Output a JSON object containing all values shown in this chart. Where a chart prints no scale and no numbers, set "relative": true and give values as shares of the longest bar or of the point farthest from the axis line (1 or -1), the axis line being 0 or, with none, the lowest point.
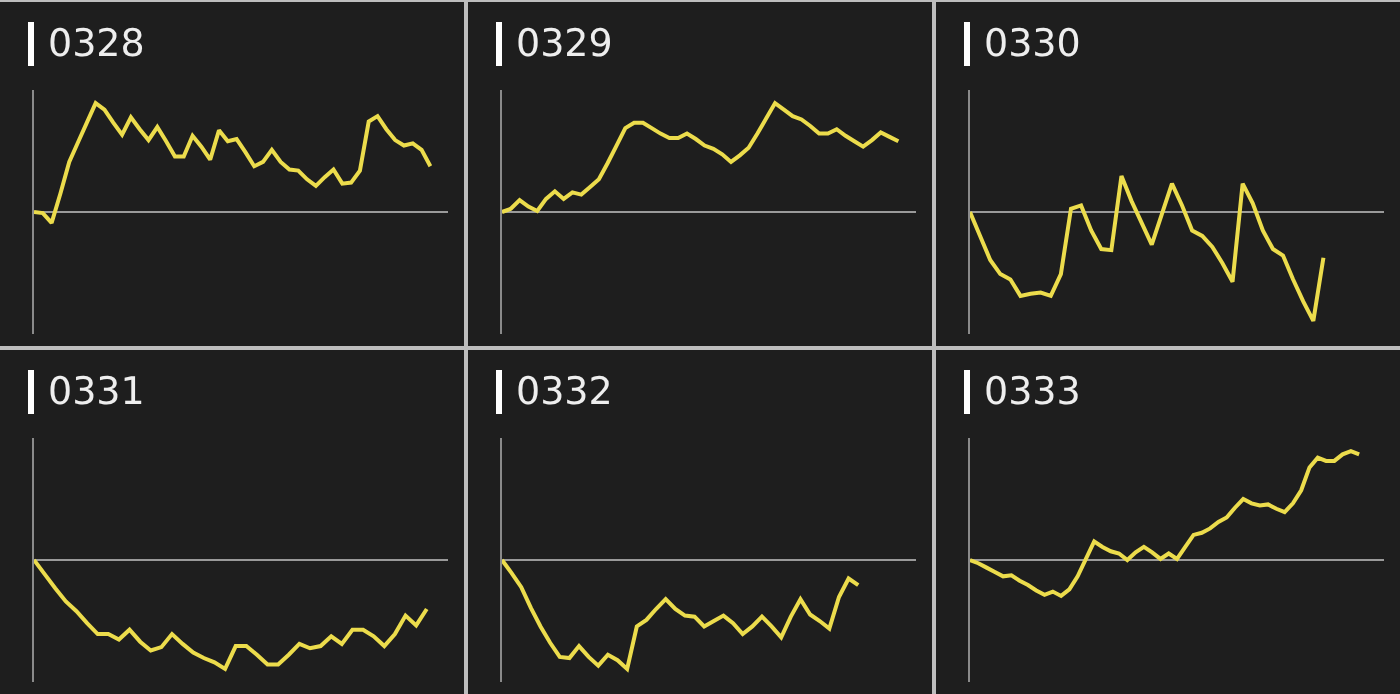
{
  "chart_data": [
    {
      "type": "line",
      "title": "0328",
      "relative": true,
      "categories": [
        null,
        null,
        null,
        null,
        null,
        null,
        null,
        null,
        null,
        null,
        null,
        null,
        null,
        null,
        null,
        null,
        null,
        null,
        null,
        null,
        null,
        null,
        null,
        null,
        null,
        null,
        null,
        null,
        null,
        null,
        null,
        null,
        null,
        null,
        null,
        null,
        null,
        null,
        null,
        null,
        null,
        null,
        null,
        null,
        null,
        null,
        null,
        null
      ],
      "series": [
        {
          "color": "#ecdc4c",
          "values": [
            0,
            -0.01,
            -0.1,
            0.17,
            0.46,
            0.64,
            0.82,
            1,
            0.94,
            0.82,
            0.71,
            0.87,
            0.76,
            0.66,
            0.78,
            0.65,
            0.51,
            0.51,
            0.7,
            0.6,
            0.48,
            0.75,
            0.65,
            0.67,
            0.55,
            0.42,
            0.46,
            0.57,
            0.46,
            0.39,
            0.38,
            0.3,
            0.24,
            0.32,
            0.39,
            0.26,
            0.27,
            0.38,
            0.83,
            0.88,
            0.76,
            0.66,
            0.61,
            0.63,
            0.57,
            0.42,
            null,
            null
          ]
        }
      ]
    },
    {
      "type": "line",
      "title": "0329",
      "relative": true,
      "categories": [
        null,
        null,
        null,
        null,
        null,
        null,
        null,
        null,
        null,
        null,
        null,
        null,
        null,
        null,
        null,
        null,
        null,
        null,
        null,
        null,
        null,
        null,
        null,
        null,
        null,
        null,
        null,
        null,
        null,
        null,
        null,
        null,
        null,
        null,
        null,
        null,
        null,
        null,
        null,
        null,
        null,
        null,
        null,
        null,
        null,
        null,
        null,
        null
      ],
      "series": [
        {
          "color": "#ecdc4c",
          "values": [
            0,
            0.03,
            0.11,
            0.05,
            0.01,
            0.12,
            0.19,
            0.12,
            0.18,
            0.16,
            0.23,
            0.3,
            0.45,
            0.61,
            0.77,
            0.82,
            0.82,
            0.77,
            0.72,
            0.68,
            0.68,
            0.72,
            0.67,
            0.61,
            0.58,
            0.53,
            0.46,
            0.52,
            0.59,
            0.72,
            0.86,
            1,
            0.94,
            0.88,
            0.85,
            0.79,
            0.72,
            0.72,
            0.76,
            0.7,
            0.65,
            0.6,
            0.66,
            0.73,
            0.69,
            0.65,
            null,
            null
          ]
        }
      ]
    },
    {
      "type": "line",
      "title": "0330",
      "relative": true,
      "categories": [
        null,
        null,
        null,
        null,
        null,
        null,
        null,
        null,
        null,
        null,
        null,
        null,
        null,
        null,
        null,
        null,
        null,
        null,
        null,
        null,
        null,
        null,
        null,
        null,
        null,
        null,
        null,
        null,
        null,
        null,
        null,
        null,
        null,
        null,
        null,
        null,
        null,
        null,
        null,
        null,
        null,
        null
      ],
      "series": [
        {
          "color": "#ecdc4c",
          "values": [
            0,
            -0.22,
            -0.44,
            -0.57,
            -0.62,
            -0.77,
            -0.75,
            -0.74,
            -0.77,
            -0.57,
            0.03,
            0.06,
            -0.17,
            -0.34,
            -0.35,
            0.33,
            0.1,
            -0.1,
            -0.3,
            -0.02,
            0.26,
            0.06,
            -0.17,
            -0.22,
            -0.32,
            -0.47,
            -0.64,
            0.26,
            0.08,
            -0.17,
            -0.34,
            -0.4,
            -0.62,
            -0.82,
            -1,
            -0.42,
            null,
            null,
            null,
            null,
            null,
            null
          ]
        }
      ]
    },
    {
      "type": "line",
      "title": "0331",
      "relative": true,
      "categories": [
        null,
        null,
        null,
        null,
        null,
        null,
        null,
        null,
        null,
        null,
        null,
        null,
        null,
        null,
        null,
        null,
        null,
        null,
        null,
        null,
        null,
        null,
        null,
        null,
        null,
        null,
        null,
        null,
        null,
        null,
        null,
        null,
        null,
        null,
        null,
        null,
        null,
        null,
        null,
        null
      ],
      "series": [
        {
          "color": "#ecdc4c",
          "values": [
            0,
            -0.13,
            -0.26,
            -0.38,
            -0.47,
            -0.58,
            -0.68,
            -0.68,
            -0.73,
            -0.64,
            -0.75,
            -0.83,
            -0.8,
            -0.68,
            -0.77,
            -0.85,
            -0.9,
            -0.94,
            -1,
            -0.79,
            -0.79,
            -0.87,
            -0.96,
            -0.96,
            -0.87,
            -0.77,
            -0.81,
            -0.79,
            -0.7,
            -0.77,
            -0.64,
            -0.64,
            -0.7,
            -0.79,
            -0.68,
            -0.51,
            -0.6,
            -0.45,
            null,
            null
          ]
        }
      ]
    },
    {
      "type": "line",
      "title": "0332",
      "relative": true,
      "categories": [
        null,
        null,
        null,
        null,
        null,
        null,
        null,
        null,
        null,
        null,
        null,
        null,
        null,
        null,
        null,
        null,
        null,
        null,
        null,
        null,
        null,
        null,
        null,
        null,
        null,
        null,
        null,
        null,
        null,
        null,
        null,
        null,
        null,
        null,
        null,
        null,
        null,
        null,
        null,
        null,
        null,
        null,
        null,
        null
      ],
      "series": [
        {
          "color": "#ecdc4c",
          "values": [
            0,
            -0.12,
            -0.25,
            -0.44,
            -0.61,
            -0.76,
            -0.89,
            -0.9,
            -0.79,
            -0.89,
            -0.97,
            -0.87,
            -0.92,
            -1,
            -0.61,
            -0.55,
            -0.45,
            -0.36,
            -0.45,
            -0.51,
            -0.52,
            -0.61,
            -0.56,
            -0.51,
            -0.58,
            -0.68,
            -0.61,
            -0.52,
            -0.61,
            -0.71,
            -0.52,
            -0.36,
            -0.5,
            -0.56,
            -0.63,
            -0.34,
            -0.17,
            -0.23,
            null,
            null,
            null,
            null,
            null,
            null
          ]
        }
      ]
    },
    {
      "type": "line",
      "title": "0333",
      "relative": true,
      "categories": [
        null,
        null,
        null,
        null,
        null,
        null,
        null,
        null,
        null,
        null,
        null,
        null,
        null,
        null,
        null,
        null,
        null,
        null,
        null,
        null,
        null,
        null,
        null,
        null,
        null,
        null,
        null,
        null,
        null,
        null,
        null,
        null,
        null,
        null,
        null,
        null,
        null,
        null,
        null,
        null,
        null,
        null,
        null,
        null,
        null,
        null,
        null,
        null,
        null,
        null,
        null
      ],
      "series": [
        {
          "color": "#ecdc4c",
          "values": [
            0,
            -0.03,
            -0.07,
            -0.11,
            -0.15,
            -0.14,
            -0.19,
            -0.23,
            -0.28,
            -0.32,
            -0.29,
            -0.33,
            -0.27,
            -0.15,
            0.01,
            0.17,
            0.12,
            0.08,
            0.06,
            0,
            0.07,
            0.12,
            0.07,
            0.01,
            0.06,
            0.01,
            0.12,
            0.23,
            0.25,
            0.29,
            0.35,
            0.39,
            0.48,
            0.56,
            0.52,
            0.5,
            0.51,
            0.47,
            0.44,
            0.52,
            0.64,
            0.85,
            0.94,
            0.91,
            0.91,
            0.97,
            1,
            0.97,
            null,
            null,
            null
          ]
        }
      ]
    }
  ]
}
